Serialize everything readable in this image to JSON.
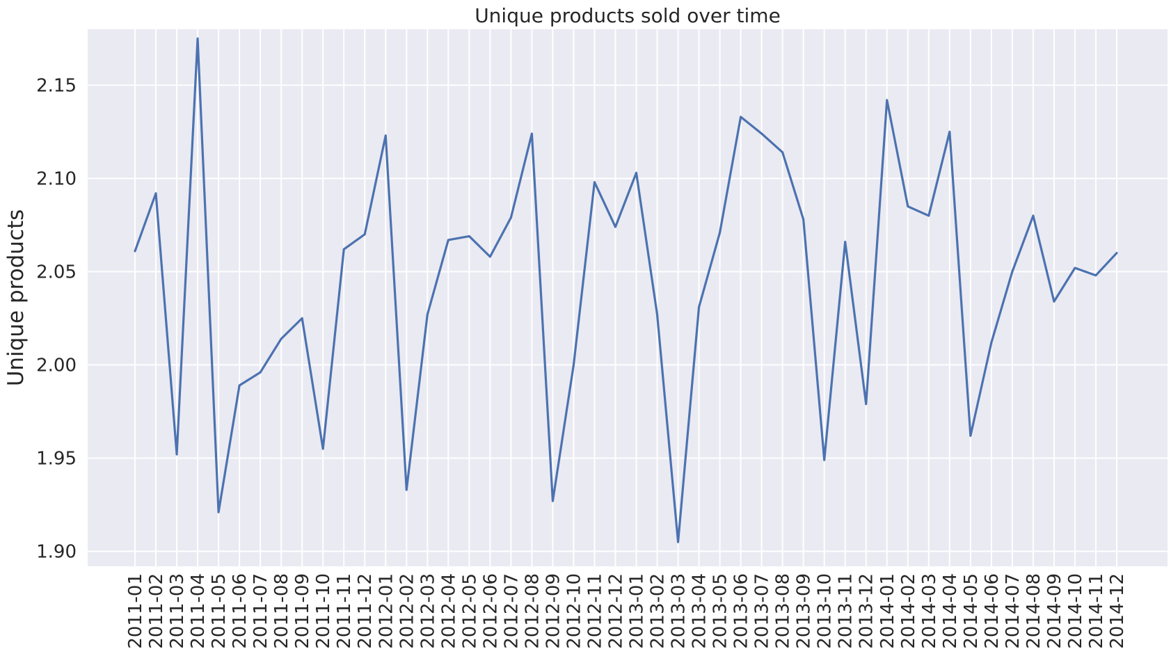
{
  "chart_data": {
    "type": "line",
    "title": "Unique products sold over time",
    "xlabel": "",
    "ylabel": "Unique products",
    "ylim": [
      1.892,
      2.18
    ],
    "yticks": [
      1.9,
      1.95,
      2.0,
      2.05,
      2.1,
      2.15
    ],
    "ytick_labels": [
      "1.90",
      "1.95",
      "2.00",
      "2.05",
      "2.10",
      "2.15"
    ],
    "grid": true,
    "categories": [
      "2011-01",
      "2011-02",
      "2011-03",
      "2011-04",
      "2011-05",
      "2011-06",
      "2011-07",
      "2011-08",
      "2011-09",
      "2011-10",
      "2011-11",
      "2011-12",
      "2012-01",
      "2012-02",
      "2012-03",
      "2012-04",
      "2012-05",
      "2012-06",
      "2012-07",
      "2012-08",
      "2012-09",
      "2012-10",
      "2012-11",
      "2012-12",
      "2013-01",
      "2013-02",
      "2013-03",
      "2013-04",
      "2013-05",
      "2013-06",
      "2013-07",
      "2013-08",
      "2013-09",
      "2013-10",
      "2013-11",
      "2013-12",
      "2014-01",
      "2014-02",
      "2014-03",
      "2014-04",
      "2014-05",
      "2014-06",
      "2014-07",
      "2014-08",
      "2014-09",
      "2014-10",
      "2014-11",
      "2014-12"
    ],
    "series": [
      {
        "color": "#4c72b0",
        "values": [
          2.061,
          2.092,
          1.952,
          2.175,
          1.921,
          1.989,
          1.996,
          2.014,
          2.025,
          1.955,
          2.062,
          2.07,
          2.123,
          1.933,
          2.027,
          2.067,
          2.069,
          2.058,
          2.079,
          2.124,
          1.927,
          2.0,
          2.098,
          2.074,
          2.103,
          2.027,
          1.905,
          2.031,
          2.071,
          2.133,
          2.124,
          2.114,
          2.078,
          1.949,
          2.066,
          1.979,
          2.142,
          2.085,
          2.08,
          2.125,
          1.962,
          2.012,
          2.05,
          2.08,
          2.034,
          2.052,
          2.048,
          2.06
        ]
      }
    ]
  },
  "colors": {
    "plot_background": "#eaeaf2",
    "grid": "#ffffff",
    "line": "#4c72b0"
  }
}
